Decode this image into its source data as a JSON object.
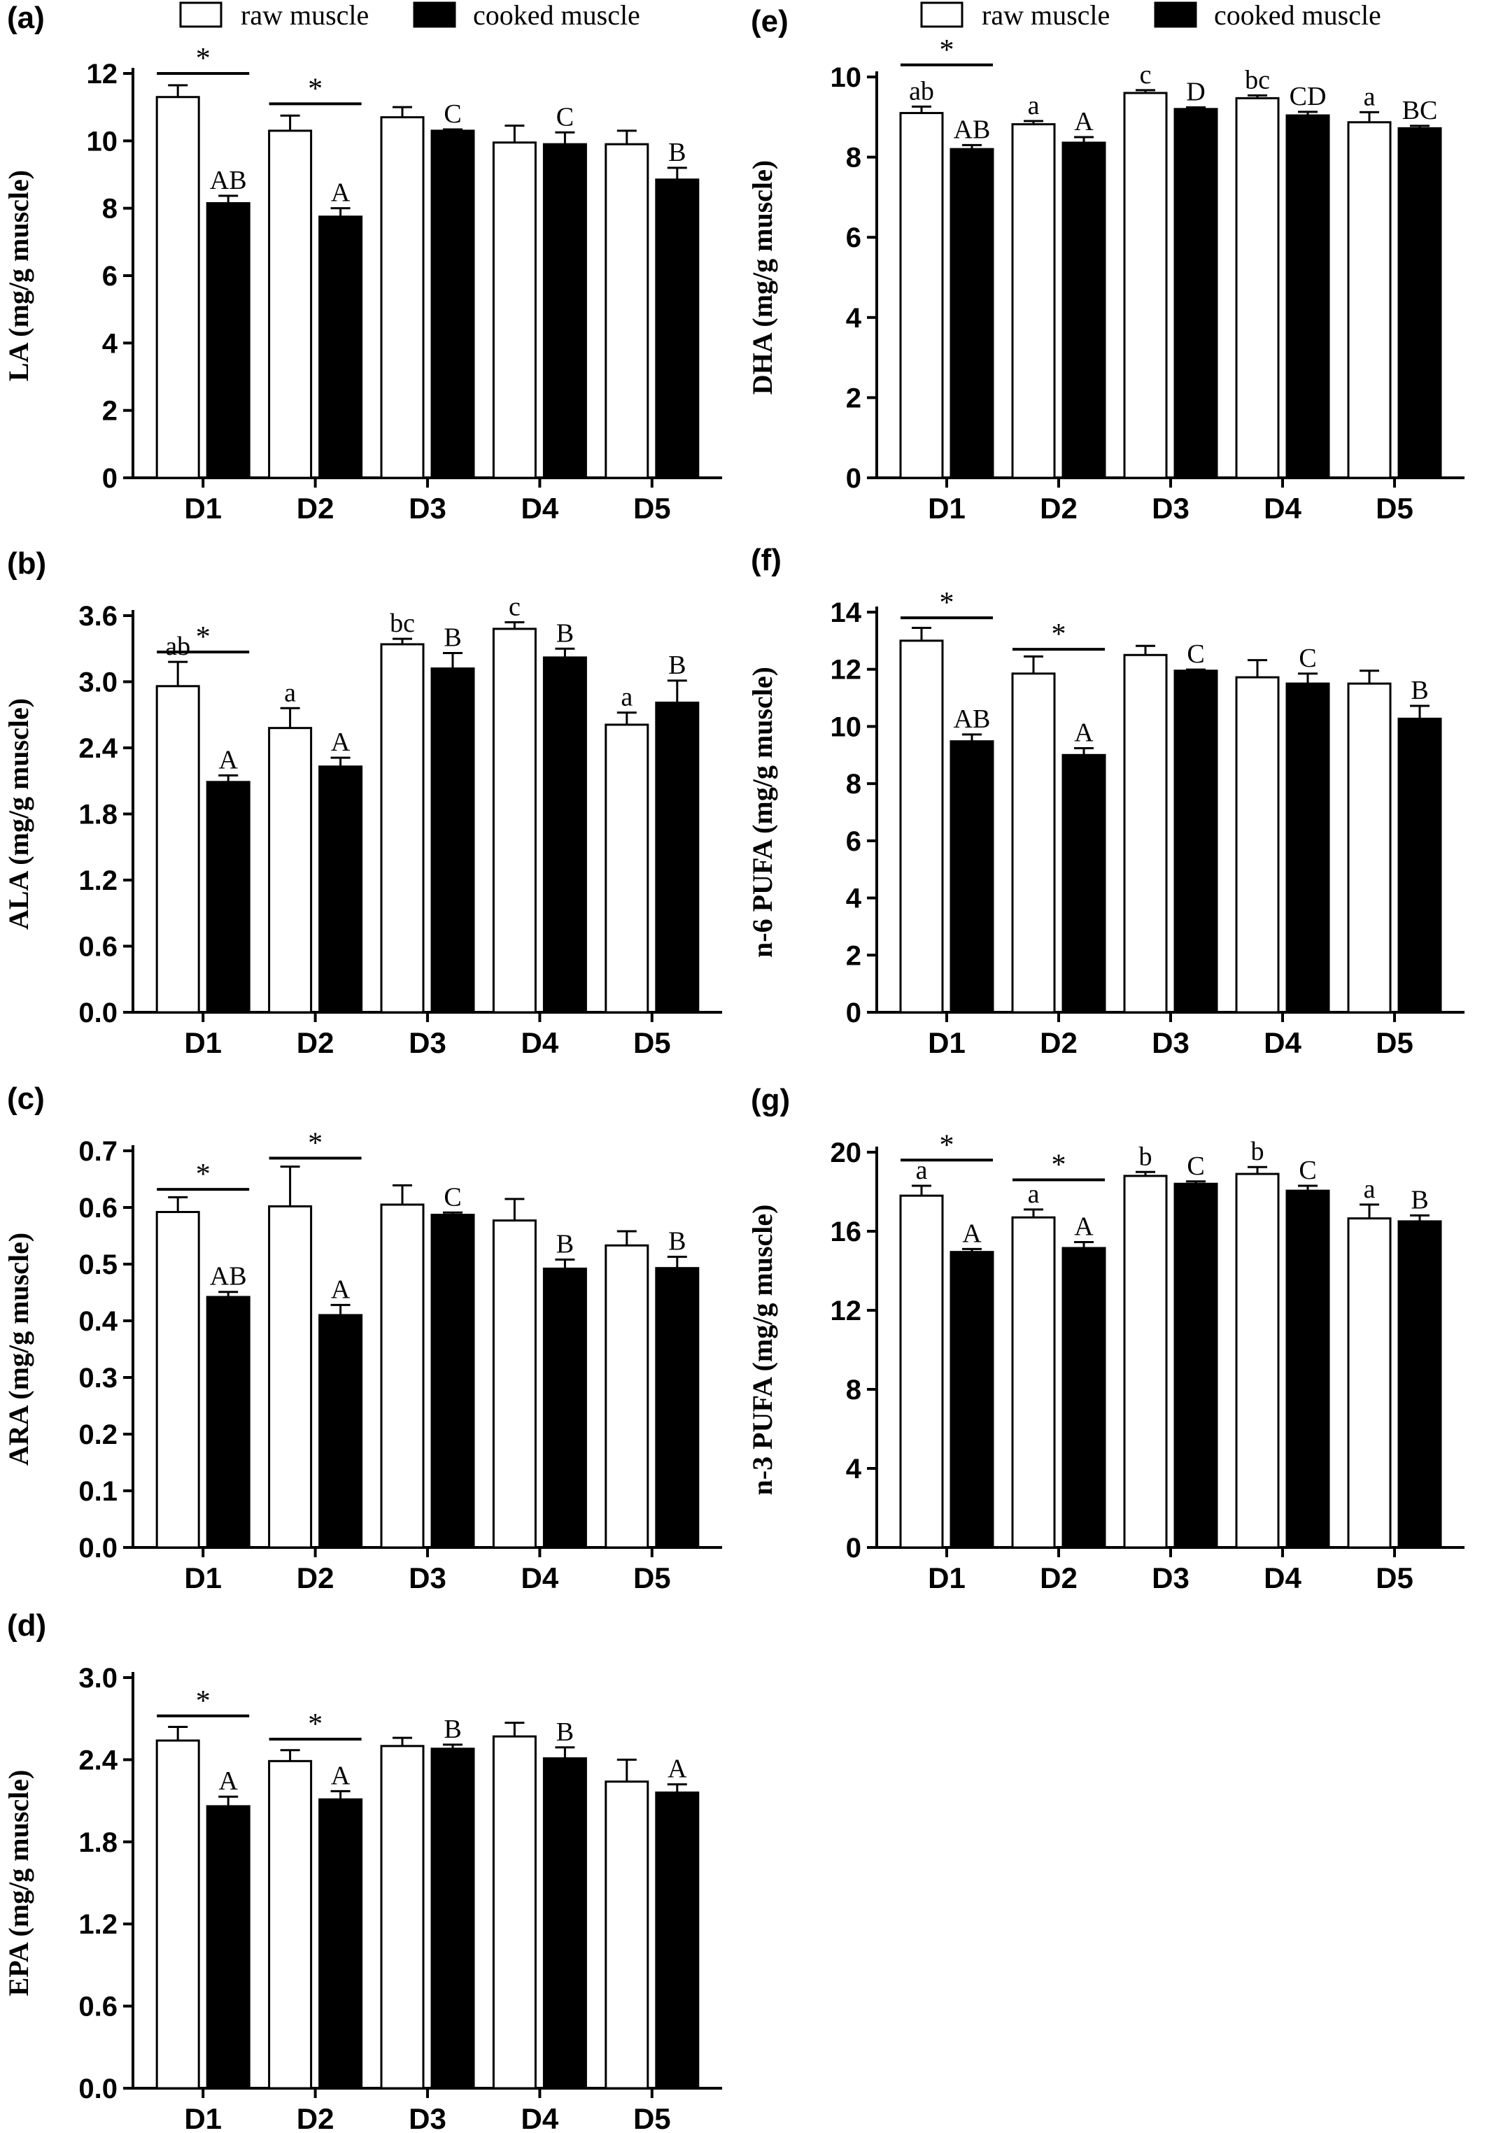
{
  "legend": {
    "raw_label": "raw muscle",
    "cooked_label": "cooked muscle",
    "raw_color": "#ffffff",
    "cooked_color": "#000000"
  },
  "chart_data": [
    {
      "type": "bar",
      "panel": "(a)",
      "ylabel": "LA  (mg/g muscle)",
      "ylim": [
        0,
        12
      ],
      "yticks": [
        0,
        2,
        4,
        6,
        8,
        10,
        12
      ],
      "tick_decimals": 0,
      "categories": [
        "D1",
        "D2",
        "D3",
        "D4",
        "D5"
      ],
      "series": [
        {
          "name": "raw muscle",
          "values": [
            11.3,
            10.3,
            10.7,
            9.95,
            9.9
          ],
          "errors": [
            0.35,
            0.45,
            0.3,
            0.5,
            0.4
          ],
          "labels": [
            "",
            "",
            "",
            "",
            ""
          ]
        },
        {
          "name": "cooked muscle",
          "values": [
            8.15,
            7.75,
            10.3,
            9.9,
            8.85
          ],
          "errors": [
            0.22,
            0.25,
            0.04,
            0.35,
            0.35
          ],
          "labels": [
            "AB",
            "A",
            "C",
            "C",
            "B"
          ]
        }
      ],
      "significance": [
        {
          "category": "D1",
          "y": 12.0,
          "label": "*"
        },
        {
          "category": "D2",
          "y": 11.1,
          "label": "*"
        }
      ]
    },
    {
      "type": "bar",
      "panel": "(b)",
      "ylabel": "ALA  (mg/g muscle)",
      "ylim": [
        0,
        3.6
      ],
      "yticks": [
        0,
        0.6,
        1.2,
        1.8,
        2.4,
        3.0,
        3.6
      ],
      "tick_decimals": 1,
      "categories": [
        "D1",
        "D2",
        "D3",
        "D4",
        "D5"
      ],
      "series": [
        {
          "name": "raw muscle",
          "values": [
            2.96,
            2.58,
            3.34,
            3.48,
            2.61
          ],
          "errors": [
            0.22,
            0.18,
            0.05,
            0.06,
            0.11
          ],
          "labels": [
            "ab",
            "a",
            "bc",
            "c",
            "a"
          ]
        },
        {
          "name": "cooked muscle",
          "values": [
            2.09,
            2.23,
            3.12,
            3.22,
            2.81
          ],
          "errors": [
            0.06,
            0.08,
            0.14,
            0.08,
            0.2
          ],
          "labels": [
            "A",
            "A",
            "B",
            "B",
            "B"
          ]
        }
      ],
      "significance": [
        {
          "category": "D1",
          "y": 3.27,
          "label": "*"
        }
      ]
    },
    {
      "type": "bar",
      "panel": "(c)",
      "ylabel": "ARA  (mg/g muscle)",
      "ylim": [
        0,
        0.7
      ],
      "yticks": [
        0,
        0.1,
        0.2,
        0.3,
        0.4,
        0.5,
        0.6,
        0.7
      ],
      "tick_decimals": 1,
      "categories": [
        "D1",
        "D2",
        "D3",
        "D4",
        "D5"
      ],
      "series": [
        {
          "name": "raw muscle",
          "values": [
            0.592,
            0.602,
            0.605,
            0.577,
            0.533
          ],
          "errors": [
            0.026,
            0.07,
            0.034,
            0.038,
            0.025
          ],
          "labels": [
            "",
            "",
            "",
            "",
            ""
          ]
        },
        {
          "name": "cooked muscle",
          "values": [
            0.442,
            0.41,
            0.587,
            0.492,
            0.493
          ],
          "errors": [
            0.009,
            0.018,
            0.004,
            0.016,
            0.02
          ],
          "labels": [
            "AB",
            "A",
            "C",
            "B",
            "B"
          ]
        }
      ],
      "significance": [
        {
          "category": "D1",
          "y": 0.632,
          "label": "*"
        },
        {
          "category": "D2",
          "y": 0.687,
          "label": "*"
        }
      ]
    },
    {
      "type": "bar",
      "panel": "(d)",
      "ylabel": "EPA  (mg/g muscle)",
      "ylim": [
        0,
        3.0
      ],
      "yticks": [
        0,
        0.6,
        1.2,
        1.8,
        2.4,
        3.0
      ],
      "tick_decimals": 1,
      "categories": [
        "D1",
        "D2",
        "D3",
        "D4",
        "D5"
      ],
      "series": [
        {
          "name": "raw muscle",
          "values": [
            2.54,
            2.39,
            2.5,
            2.57,
            2.24
          ],
          "errors": [
            0.1,
            0.08,
            0.06,
            0.1,
            0.16
          ],
          "labels": [
            "",
            "",
            "",
            "",
            ""
          ]
        },
        {
          "name": "cooked muscle",
          "values": [
            2.06,
            2.11,
            2.48,
            2.41,
            2.16
          ],
          "errors": [
            0.07,
            0.06,
            0.03,
            0.08,
            0.06
          ],
          "labels": [
            "A",
            "A",
            "B",
            "B",
            "A"
          ]
        }
      ],
      "significance": [
        {
          "category": "D1",
          "y": 2.72,
          "label": "*"
        },
        {
          "category": "D2",
          "y": 2.55,
          "label": "*"
        }
      ]
    },
    {
      "type": "bar",
      "panel": "(e)",
      "ylabel": "DHA  (mg/g muscle)",
      "ylim": [
        0,
        10
      ],
      "yticks": [
        0,
        2,
        4,
        6,
        8,
        10
      ],
      "tick_decimals": 0,
      "categories": [
        "D1",
        "D2",
        "D3",
        "D4",
        "D5"
      ],
      "series": [
        {
          "name": "raw muscle",
          "values": [
            9.1,
            8.82,
            9.6,
            9.47,
            8.87
          ],
          "errors": [
            0.16,
            0.08,
            0.07,
            0.07,
            0.25
          ],
          "labels": [
            "ab",
            "a",
            "c",
            "bc",
            "a"
          ]
        },
        {
          "name": "cooked muscle",
          "values": [
            8.2,
            8.36,
            9.2,
            9.04,
            8.72
          ],
          "errors": [
            0.1,
            0.14,
            0.04,
            0.09,
            0.06
          ],
          "labels": [
            "AB",
            "A",
            "D",
            "CD",
            "BC"
          ]
        }
      ],
      "significance": [
        {
          "category": "D1",
          "y": 10.3,
          "label": "*"
        }
      ]
    },
    {
      "type": "bar",
      "panel": "(f)",
      "ylabel": "n-6 PUFA  (mg/g muscle)",
      "ylim": [
        0,
        14
      ],
      "yticks": [
        0,
        2,
        4,
        6,
        8,
        10,
        12,
        14
      ],
      "tick_decimals": 0,
      "categories": [
        "D1",
        "D2",
        "D3",
        "D4",
        "D5"
      ],
      "series": [
        {
          "name": "raw muscle",
          "values": [
            13.0,
            11.85,
            12.5,
            11.72,
            11.5
          ],
          "errors": [
            0.45,
            0.6,
            0.32,
            0.6,
            0.45
          ],
          "labels": [
            "",
            "",
            "",
            "",
            ""
          ]
        },
        {
          "name": "cooked muscle",
          "values": [
            9.48,
            9.0,
            11.95,
            11.5,
            10.27
          ],
          "errors": [
            0.24,
            0.24,
            0.04,
            0.35,
            0.45
          ],
          "labels": [
            "AB",
            "A",
            "C",
            "C",
            "B"
          ]
        }
      ],
      "significance": [
        {
          "category": "D1",
          "y": 13.8,
          "label": "*"
        },
        {
          "category": "D2",
          "y": 12.7,
          "label": "*"
        }
      ]
    },
    {
      "type": "bar",
      "panel": "(g)",
      "ylabel": "n-3 PUFA (mg/g muscle)",
      "ylim": [
        0,
        20
      ],
      "yticks": [
        0,
        4,
        8,
        12,
        16,
        20
      ],
      "tick_decimals": 0,
      "categories": [
        "D1",
        "D2",
        "D3",
        "D4",
        "D5"
      ],
      "series": [
        {
          "name": "raw muscle",
          "values": [
            17.8,
            16.7,
            18.8,
            18.9,
            16.65
          ],
          "errors": [
            0.5,
            0.4,
            0.2,
            0.35,
            0.7
          ],
          "labels": [
            "a",
            "a",
            "b",
            "b",
            "a"
          ]
        },
        {
          "name": "cooked muscle",
          "values": [
            14.95,
            15.15,
            18.4,
            18.05,
            16.5
          ],
          "errors": [
            0.15,
            0.3,
            0.12,
            0.25,
            0.3
          ],
          "labels": [
            "A",
            "A",
            "C",
            "C",
            "B"
          ]
        }
      ],
      "significance": [
        {
          "category": "D1",
          "y": 19.6,
          "label": "*"
        },
        {
          "category": "D2",
          "y": 18.6,
          "label": "*"
        }
      ]
    }
  ]
}
